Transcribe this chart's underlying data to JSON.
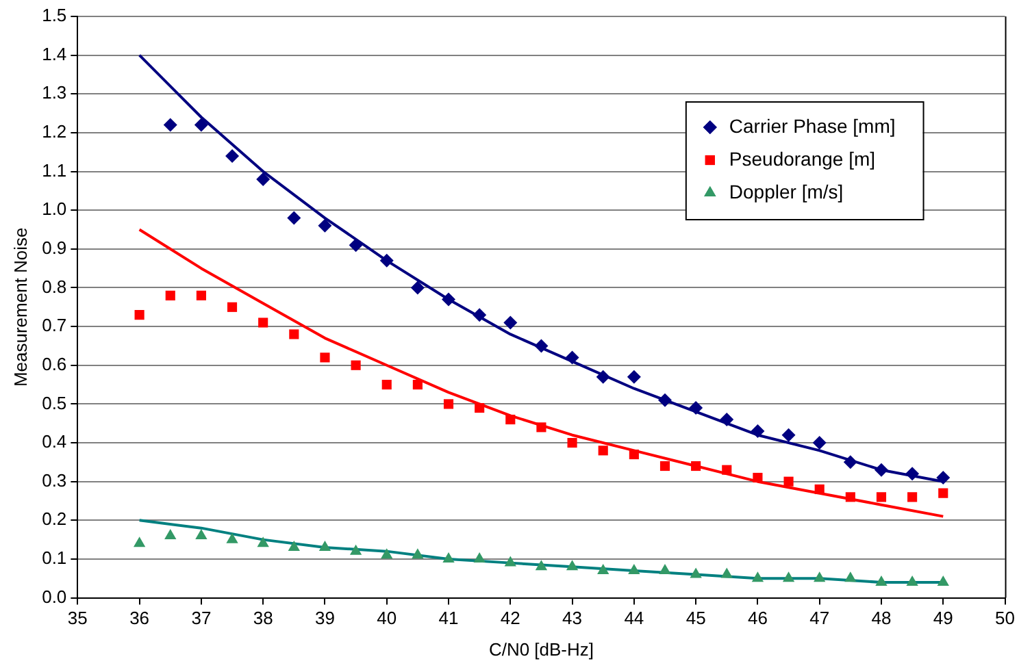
{
  "chart_data": {
    "type": "scatter",
    "xlabel": "C/N0 [dB-Hz]",
    "ylabel": "Measurement Noise",
    "x": [
      36,
      36.5,
      37,
      37.5,
      38,
      38.5,
      39,
      39.5,
      40,
      40.5,
      41,
      41.5,
      42,
      42.5,
      43,
      43.5,
      44,
      44.5,
      45,
      45.5,
      46,
      46.5,
      47,
      47.5,
      48,
      48.5,
      49
    ],
    "series": [
      {
        "name": "Carrier Phase [mm]",
        "type": "scatter",
        "marker": "diamond",
        "color": "#000080",
        "values": [
          null,
          1.22,
          1.22,
          1.14,
          1.08,
          0.98,
          0.96,
          0.91,
          0.87,
          0.8,
          0.77,
          0.73,
          0.71,
          0.65,
          0.62,
          0.57,
          0.57,
          0.51,
          0.49,
          0.46,
          0.43,
          0.42,
          0.4,
          0.35,
          0.33,
          0.32,
          0.31
        ]
      },
      {
        "name": "Pseudorange [m]",
        "type": "scatter",
        "marker": "square",
        "color": "#ff0000",
        "values": [
          0.73,
          0.78,
          0.78,
          0.75,
          0.71,
          0.68,
          0.62,
          0.6,
          0.55,
          0.55,
          0.5,
          0.49,
          0.46,
          0.44,
          0.4,
          0.38,
          0.37,
          0.34,
          0.34,
          0.33,
          0.31,
          0.3,
          0.28,
          0.26,
          0.26,
          0.26,
          0.27
        ]
      },
      {
        "name": "Doppler [m/s]",
        "type": "scatter",
        "marker": "triangle",
        "color": "#339966",
        "values": [
          0.14,
          0.16,
          0.16,
          0.15,
          0.14,
          0.13,
          0.13,
          0.12,
          0.11,
          0.11,
          0.1,
          0.1,
          0.09,
          0.08,
          0.08,
          0.07,
          0.07,
          0.07,
          0.06,
          0.06,
          0.05,
          0.05,
          0.05,
          0.05,
          0.04,
          0.04,
          0.04
        ]
      },
      {
        "type": "line",
        "marker": "none",
        "color": "#000080",
        "x": [
          36,
          37,
          38,
          39,
          40,
          41,
          42,
          43,
          44,
          45,
          46,
          47,
          48,
          49
        ],
        "values": [
          1.4,
          1.24,
          1.1,
          0.98,
          0.87,
          0.77,
          0.68,
          0.61,
          0.54,
          0.48,
          0.42,
          0.38,
          0.33,
          0.3
        ]
      },
      {
        "type": "line",
        "marker": "none",
        "color": "#ff0000",
        "x": [
          36,
          37,
          38,
          39,
          40,
          41,
          42,
          43,
          44,
          45,
          46,
          47,
          48,
          49
        ],
        "values": [
          0.95,
          0.85,
          0.76,
          0.67,
          0.6,
          0.53,
          0.47,
          0.42,
          0.38,
          0.34,
          0.3,
          0.27,
          0.24,
          0.21
        ]
      },
      {
        "type": "line",
        "marker": "none",
        "color": "#008080",
        "x": [
          36,
          37,
          38,
          39,
          40,
          41,
          42,
          43,
          44,
          45,
          46,
          47,
          48,
          49
        ],
        "values": [
          0.2,
          0.18,
          0.15,
          0.13,
          0.12,
          0.1,
          0.09,
          0.08,
          0.07,
          0.06,
          0.05,
          0.05,
          0.04,
          0.04
        ]
      }
    ],
    "xlim": [
      35,
      50
    ],
    "xticks": [
      35,
      36,
      37,
      38,
      39,
      40,
      41,
      42,
      43,
      44,
      45,
      46,
      47,
      48,
      49,
      50
    ],
    "ylim": [
      0,
      1.5
    ],
    "yticks": [
      {
        "value": 0,
        "label": "0.0"
      },
      0.1,
      0.2,
      0.3,
      0.4,
      0.5,
      0.6,
      0.7,
      0.8,
      0.9,
      {
        "value": 1,
        "label": "1.0"
      },
      1.1,
      1.2,
      1.3,
      1.4,
      1.5
    ],
    "grid": "y",
    "legend": "top right",
    "line_style": "solid"
  }
}
